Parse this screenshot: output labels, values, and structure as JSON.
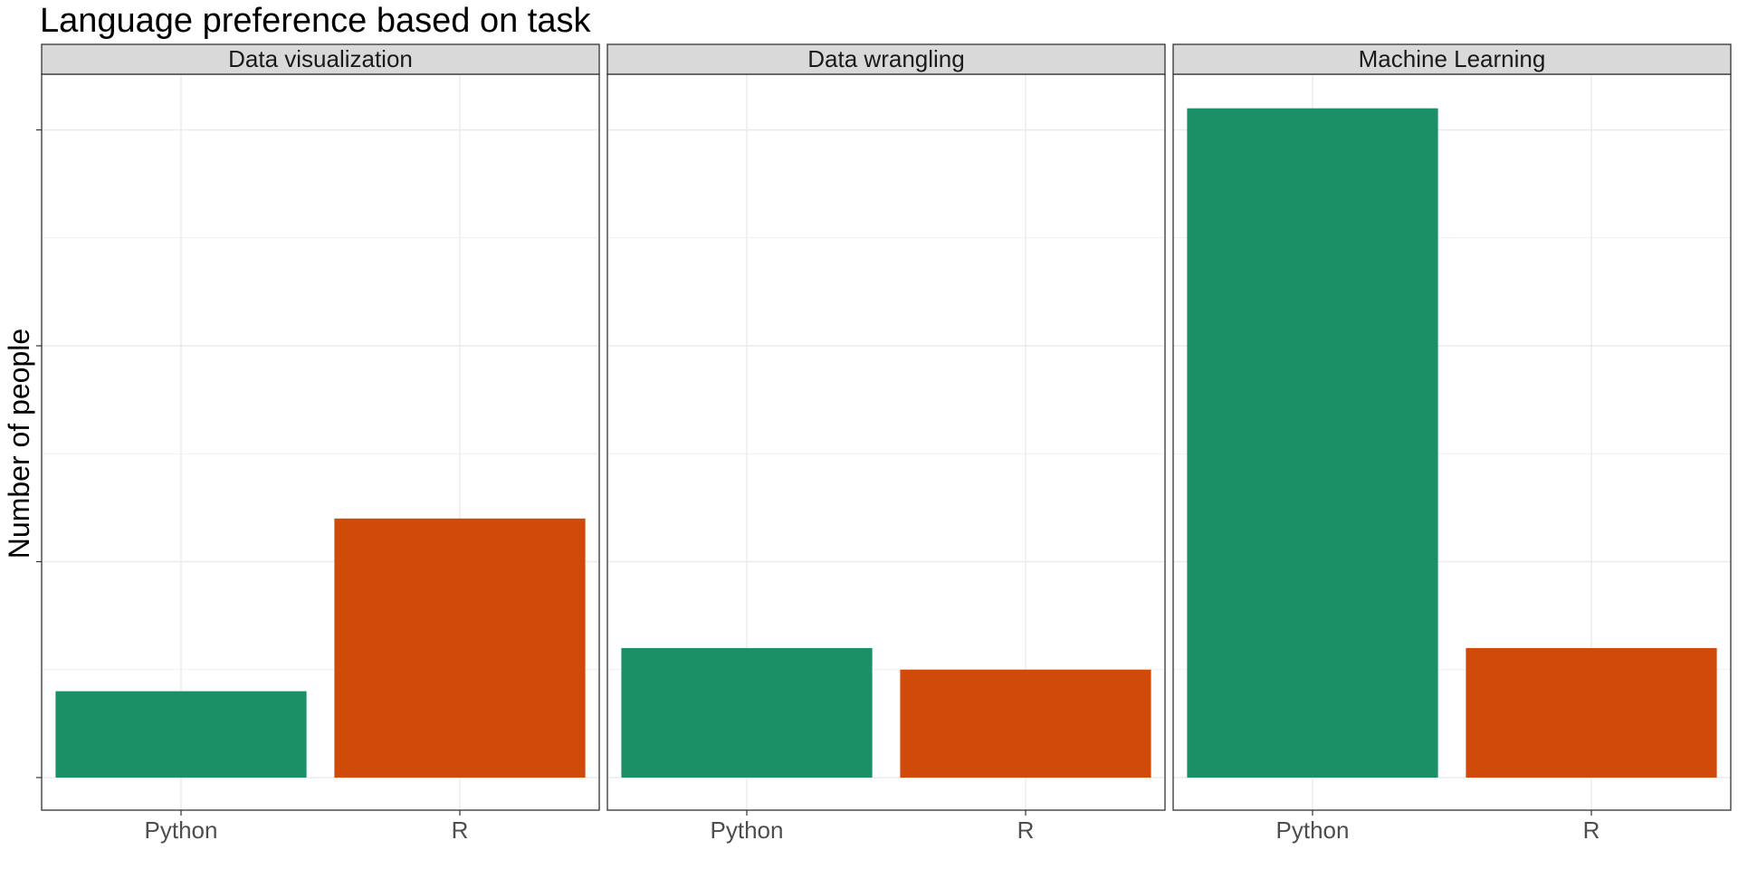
{
  "chart_data": {
    "type": "bar",
    "title": "Language preference based on task",
    "xlabel": "",
    "ylabel": "Number of people",
    "ylim": [
      0,
      32.5
    ],
    "y_ticks": [
      0,
      10,
      20,
      30
    ],
    "y_tick_labels_visible": false,
    "grid": true,
    "categories": [
      "Python",
      "R"
    ],
    "colors": {
      "Python": "#1b9066",
      "R": "#d04b09"
    },
    "facets": [
      {
        "label": "Data visualization",
        "values": [
          4,
          12
        ]
      },
      {
        "label": "Data wrangling",
        "values": [
          6,
          5
        ]
      },
      {
        "label": "Machine Learning",
        "values": [
          31,
          6
        ]
      }
    ]
  }
}
